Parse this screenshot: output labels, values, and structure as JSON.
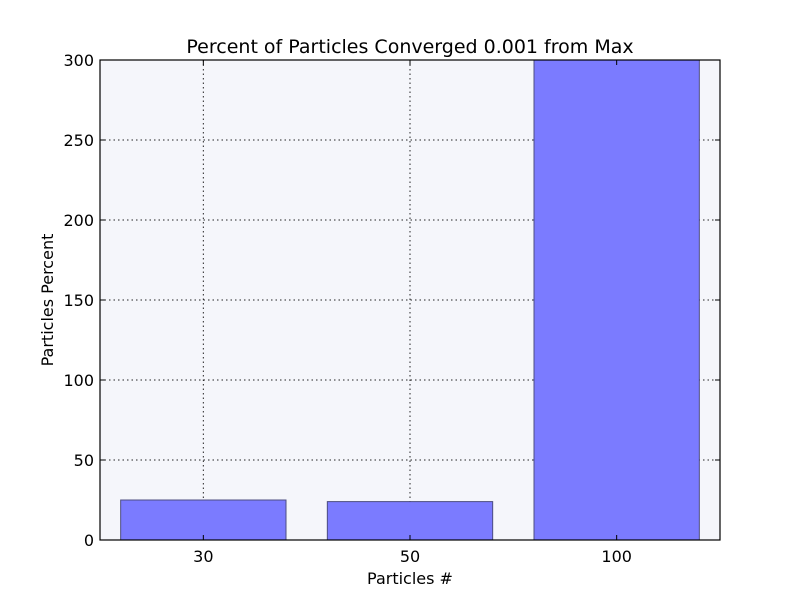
{
  "chart_data": {
    "type": "bar",
    "title": "Percent of Particles Converged 0.001 from Max",
    "xlabel": "Particles #",
    "ylabel": "Particles Percent",
    "categories": [
      "30",
      "50",
      "100"
    ],
    "values": [
      25,
      24,
      300
    ],
    "ylim": [
      0,
      300
    ],
    "yticks": [
      0,
      50,
      100,
      150,
      200,
      250,
      300
    ],
    "ytick_labels": [
      "0",
      "50",
      "100",
      "150",
      "200",
      "250",
      "300"
    ],
    "grid": true,
    "colors": {
      "bar_fill": "#7b7bff",
      "bar_edge": "#4d4d80",
      "plot_background": "#f5f6fb",
      "figure_background": "#ffffff",
      "axis": "#000000"
    }
  }
}
